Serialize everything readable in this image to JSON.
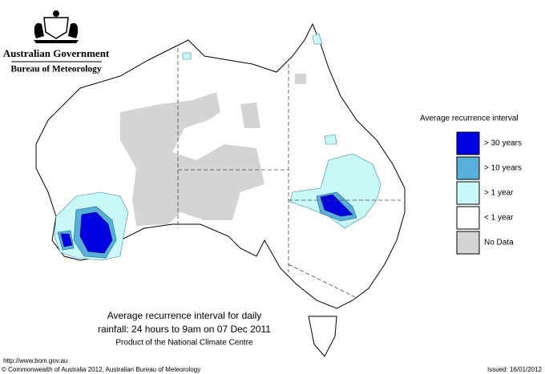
{
  "header": {
    "agency": "Australian Government",
    "bureau": "Bureau of Meteorology"
  },
  "legend": {
    "title": "Average recurrence interval",
    "items": [
      {
        "label": "> 30 years",
        "color": "#0000e0"
      },
      {
        "label": "> 10 years",
        "color": "#58b0d8"
      },
      {
        "label": "> 1 year",
        "color": "#c8f8f8"
      },
      {
        "label": "< 1 year",
        "color": "#ffffff"
      },
      {
        "label": "No Data",
        "color": "#d4d4d4"
      }
    ]
  },
  "caption": {
    "line1": "Average recurrence interval for daily",
    "line2": "rainfall: 24 hours to 9am on 07 Dec 2011",
    "line3": "Product of the National Climate Centre"
  },
  "footer": {
    "url": "http://www.bom.gov.au",
    "copyright": "© Commonwealth of Australia 2012, Australian Bureau of Meteorology",
    "issued": "Issued: 16/01/2012"
  }
}
